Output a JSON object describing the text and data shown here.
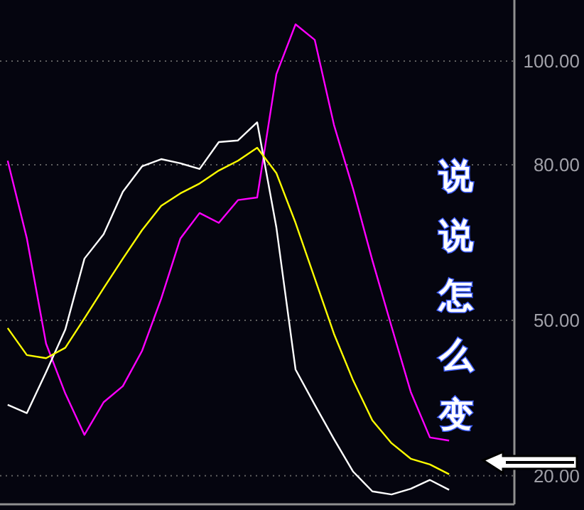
{
  "chart_data": {
    "type": "line",
    "categories": [
      null,
      null,
      null,
      null,
      null,
      null,
      null,
      null,
      null,
      null,
      null,
      null,
      null,
      null,
      null,
      null,
      null,
      null,
      null,
      null,
      null,
      null,
      null,
      null,
      null,
      null,
      null
    ],
    "series": [
      {
        "color": "#ff00ff",
        "values": [
          80.8,
          65.8,
          45.5,
          35.9,
          27.9,
          34.2,
          37.3,
          44.1,
          54.2,
          65.8,
          70.7,
          68.8,
          73.2,
          73.7,
          97.5,
          107.1,
          104.1,
          87.7,
          75.3,
          61.6,
          48.8,
          36.2,
          27.4,
          26.8,
          null,
          null,
          null
        ]
      },
      {
        "color": "#ffffff",
        "values": [
          33.7,
          32.1,
          40.0,
          48.2,
          61.9,
          66.6,
          74.8,
          79.7,
          81.1,
          80.3,
          79.2,
          84.4,
          84.7,
          88.2,
          67.9,
          40.5,
          33.7,
          27.1,
          20.8,
          17.0,
          16.4,
          17.5,
          19.2,
          17.3,
          null,
          null,
          null
        ]
      },
      {
        "color": "#ffff00",
        "values": [
          48.5,
          43.3,
          42.7,
          44.7,
          50.4,
          56.2,
          61.9,
          67.4,
          72.1,
          74.5,
          76.4,
          78.9,
          80.8,
          83.3,
          78.4,
          68.8,
          58.1,
          47.4,
          38.4,
          30.7,
          26.3,
          23.3,
          22.2,
          20.3,
          null,
          null,
          null
        ]
      }
    ],
    "ylim": [
      14.5,
      111.8
    ],
    "yticks": [
      {
        "value": 20,
        "label": "20.00"
      },
      {
        "value": 50,
        "label": "50.00"
      },
      {
        "value": 80,
        "label": "80.00"
      },
      {
        "value": 100,
        "label": "100.00"
      }
    ],
    "grid": "y",
    "marker": "none",
    "line_style": "solid",
    "annotations": [
      "说说怎么变"
    ]
  }
}
